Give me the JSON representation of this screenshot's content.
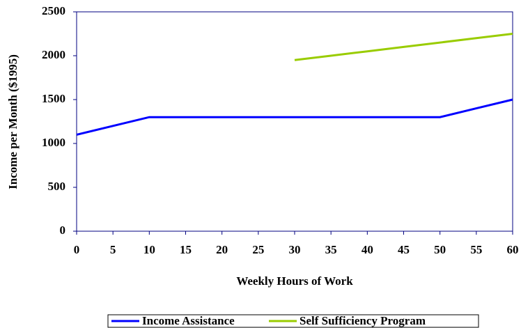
{
  "chart_data": {
    "type": "line",
    "x_label": "Weekly Hours of Work",
    "y_label": "Income per Month ($1995)",
    "x": [
      0,
      5,
      10,
      15,
      20,
      25,
      30,
      35,
      40,
      45,
      50,
      55,
      60
    ],
    "series": [
      {
        "name": "Income Assistance",
        "color": "#0000ff",
        "values": [
          1100,
          1200,
          1300,
          1300,
          1300,
          1300,
          1300,
          1300,
          1300,
          1300,
          1300,
          1400,
          1500
        ]
      },
      {
        "name": "Self Sufficiency Program",
        "color": "#99cc00",
        "values": [
          null,
          null,
          null,
          null,
          null,
          null,
          1950,
          2000,
          2050,
          2100,
          2150,
          2200,
          2250
        ]
      }
    ],
    "xlim": [
      0,
      60
    ],
    "xticks": [
      0,
      5,
      10,
      15,
      20,
      25,
      30,
      35,
      40,
      45,
      50,
      55,
      60
    ],
    "ylim": [
      0,
      2500
    ],
    "yticks": [
      0,
      500,
      1000,
      1500,
      2000,
      2500
    ],
    "grid": false,
    "legend": "bottom"
  }
}
